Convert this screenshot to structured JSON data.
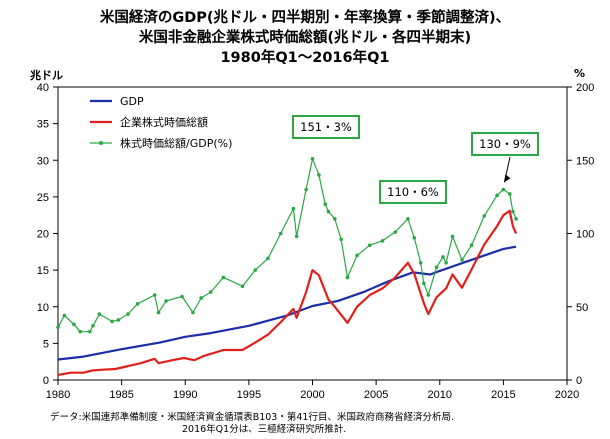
{
  "title_lines": [
    "米国経済のGDP(兆ドル・四半期別・年率換算・季節調整済)、",
    "米国非金融企業株式時価総額(兆ドル・各四半期末)",
    "1980年Q1〜2016年Q1"
  ],
  "left_unit": "兆ドル",
  "right_unit": "%",
  "notes": [
    "データ:米国連邦準備制度・米国経済資金循環表B103・第41行目、米国政府商務省経済分析局.",
    "2016年Q1分は、三極経済研究所推計."
  ],
  "colors": {
    "gdp": "#1a2ea8",
    "market_cap": "#e0201a",
    "ratio": "#2aa845",
    "callout_border": "#2aa845"
  },
  "chart_data": {
    "type": "line",
    "x_label_ticks": [
      "1980",
      "1985",
      "1990",
      "1995",
      "2000",
      "2005",
      "2010",
      "2015",
      "2020"
    ],
    "y_left_ticks": [
      "0",
      "5",
      "10",
      "15",
      "20",
      "25",
      "30",
      "35",
      "40"
    ],
    "y_right_ticks": [
      "0",
      "50",
      "100",
      "150",
      "200"
    ],
    "xlim": [
      1980,
      2020
    ],
    "ylim_left": [
      0,
      40
    ],
    "ylim_right": [
      0,
      200
    ],
    "grid": false,
    "legend_position": "top-left",
    "series": [
      {
        "name": "GDP",
        "axis": "left",
        "color": "#1a2ea8",
        "x": [
          1980,
          1982,
          1985,
          1988,
          1990,
          1992,
          1995,
          1998,
          2000,
          2002,
          2004,
          2006,
          2007.9,
          2009.25,
          2010,
          2012,
          2014,
          2015,
          2016.0
        ],
        "y": [
          2.8,
          3.2,
          4.2,
          5.1,
          5.9,
          6.4,
          7.4,
          8.8,
          10.1,
          10.8,
          12.0,
          13.5,
          14.7,
          14.4,
          14.9,
          16.1,
          17.3,
          17.9,
          18.2
        ]
      },
      {
        "name": "企業株式時価総額",
        "axis": "left",
        "color": "#e0201a",
        "x": [
          1980,
          1981,
          1982,
          1982.7,
          1983.5,
          1984.5,
          1985.5,
          1986.5,
          1987.6,
          1987.9,
          1989,
          1989.9,
          1990.7,
          1991.5,
          1993,
          1994.5,
          1995.5,
          1996.5,
          1997.5,
          1998.5,
          1998.75,
          1999.5,
          2000.0,
          2000.5,
          2001.25,
          2001.75,
          2002.75,
          2003.5,
          2004.5,
          2005.5,
          2006.5,
          2007.5,
          2008.0,
          2008.75,
          2009.1,
          2009.75,
          2010.5,
          2011.0,
          2011.75,
          2012.5,
          2013.5,
          2014.5,
          2015.0,
          2015.5,
          2015.75,
          2016.0
        ],
        "y": [
          0.7,
          1.0,
          1.0,
          1.3,
          1.4,
          1.5,
          1.9,
          2.3,
          2.9,
          2.3,
          2.7,
          3.0,
          2.7,
          3.3,
          4.1,
          4.1,
          5.1,
          6.2,
          7.9,
          9.7,
          8.5,
          12.0,
          15.0,
          14.3,
          11.0,
          10.0,
          7.8,
          10.0,
          11.6,
          12.5,
          14.0,
          16.0,
          14.5,
          10.5,
          9.0,
          11.3,
          12.5,
          14.4,
          12.6,
          15.1,
          18.5,
          21.0,
          22.5,
          23.1,
          21.0,
          20.0
        ]
      },
      {
        "name": "株式時価総額/GDP(%)",
        "axis": "right",
        "color": "#2aa845",
        "x": [
          1980,
          1980.5,
          1981.25,
          1981.75,
          1982.5,
          1982.75,
          1983.25,
          1984.25,
          1984.75,
          1985.5,
          1986.25,
          1987.6,
          1987.9,
          1988.5,
          1989.75,
          1990.6,
          1991.25,
          1992,
          1993,
          1994.5,
          1995.5,
          1996.5,
          1997.5,
          1998.5,
          1998.75,
          1999.5,
          2000.0,
          2000.5,
          2001.0,
          2001.25,
          2001.75,
          2002.25,
          2002.75,
          2003.5,
          2004.5,
          2005.5,
          2006.5,
          2007.5,
          2008.0,
          2008.5,
          2008.75,
          2009.1,
          2009.75,
          2010.25,
          2010.5,
          2011.0,
          2011.75,
          2012.5,
          2013.5,
          2014.5,
          2015.0,
          2015.5,
          2015.75,
          2016.0
        ],
        "y": [
          36,
          44,
          38,
          33,
          33,
          37,
          45,
          40,
          41,
          45,
          52,
          58,
          46,
          54,
          57,
          46,
          56,
          60,
          70,
          64,
          75,
          83,
          100,
          117,
          98,
          130,
          151,
          140,
          120,
          115,
          110,
          96,
          70,
          85,
          92,
          95,
          101,
          110,
          97,
          80,
          66,
          58,
          77,
          84,
          80,
          98,
          82,
          92,
          112,
          126,
          130,
          127,
          115,
          110
        ]
      }
    ],
    "annotations": [
      {
        "text": "151・3%",
        "x": 2000.0,
        "y_right": 151.3
      },
      {
        "text": "110・6%",
        "x": 2007.5,
        "y_right": 110.6
      },
      {
        "text": "130・9%",
        "x": 2015.0,
        "y_right": 130.9
      }
    ]
  }
}
